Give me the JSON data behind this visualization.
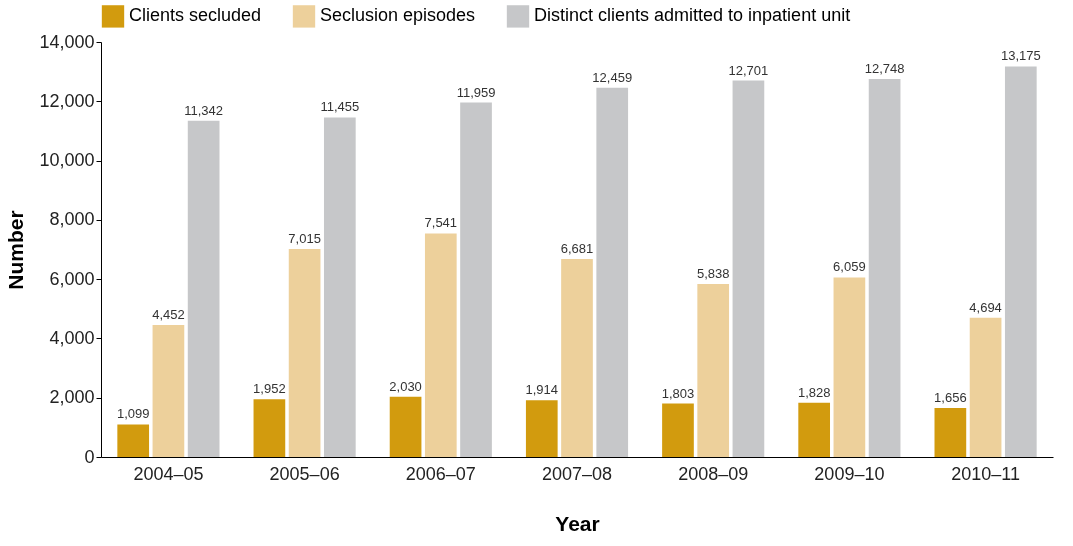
{
  "chart_data": {
    "type": "bar",
    "xlabel": "Year",
    "ylabel": "Number",
    "categories": [
      "2004–05",
      "2005–06",
      "2006–07",
      "2007–08",
      "2008–09",
      "2009–10",
      "2010–11"
    ],
    "series": [
      {
        "name": "Clients secluded",
        "color": "#d29b0e",
        "values": [
          1099,
          1952,
          2030,
          1914,
          1803,
          1828,
          1656
        ],
        "value_labels": [
          "1,099",
          "1,952",
          "2,030",
          "1,914",
          "1,803",
          "1,828",
          "1,656"
        ]
      },
      {
        "name": "Seclusion episodes",
        "color": "#edd09b",
        "values": [
          4452,
          7015,
          7541,
          6681,
          5838,
          6059,
          4694
        ],
        "value_labels": [
          "4,452",
          "7,015",
          "7,541",
          "6,681",
          "5,838",
          "6,059",
          "4,694"
        ]
      },
      {
        "name": "Distinct clients admitted to inpatient unit",
        "color": "#c6c7c9",
        "values": [
          11342,
          11455,
          11959,
          12459,
          12701,
          12748,
          13175
        ],
        "value_labels": [
          "11,342",
          "11,455",
          "11,959",
          "12,459",
          "12,701",
          "12,748",
          "13,175"
        ]
      }
    ],
    "ylim": [
      0,
      14000
    ],
    "yticks": [
      0,
      {
        "value": 2000,
        "label": "2,000"
      },
      {
        "value": 4000,
        "label": "4,000"
      },
      {
        "value": 6000,
        "label": "6,000"
      },
      {
        "value": 8000,
        "label": "8,000"
      },
      {
        "value": 10000,
        "label": "10,000"
      },
      {
        "value": 12000,
        "label": "12,000"
      },
      {
        "value": 14000,
        "label": "14,000"
      }
    ],
    "legend": "top",
    "grid": false
  }
}
